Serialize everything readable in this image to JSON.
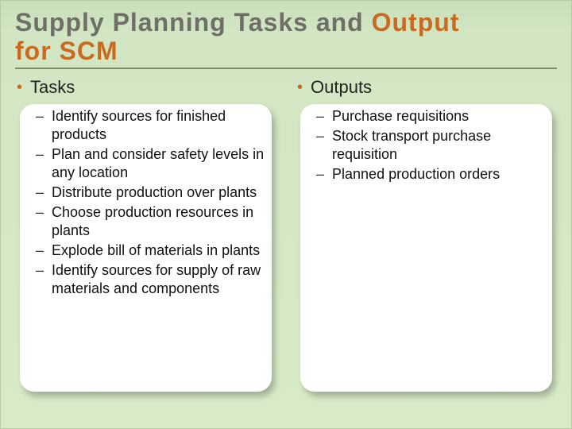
{
  "colors": {
    "background_gradient_top": "#c8e0ba",
    "background_gradient_bottom": "#d8ebc8",
    "title_gray": "#6f6f67",
    "title_accent": "#c96a1e",
    "underline": "#7a8f6e",
    "bullet": "#c96a1e",
    "card_bg": "#ffffff",
    "text": "#111111"
  },
  "typography": {
    "title_fontsize": 32,
    "heading_fontsize": 22,
    "item_fontsize": 18,
    "font_family": "Verdana"
  },
  "title": {
    "line1_gray": "Supply Planning Tasks and ",
    "line1_accent": "Output",
    "line2_accent": "for SCM"
  },
  "left": {
    "heading": "Tasks",
    "items": [
      "Identify sources for finished products",
      "Plan and consider safety levels in any location",
      "Distribute production over plants",
      "Choose production resources in plants",
      "Explode bill of materials in plants",
      "Identify sources for supply of raw materials and components"
    ]
  },
  "right": {
    "heading": "Outputs",
    "items": [
      "Purchase requisitions",
      "Stock transport purchase requisition",
      "Planned production orders"
    ]
  }
}
